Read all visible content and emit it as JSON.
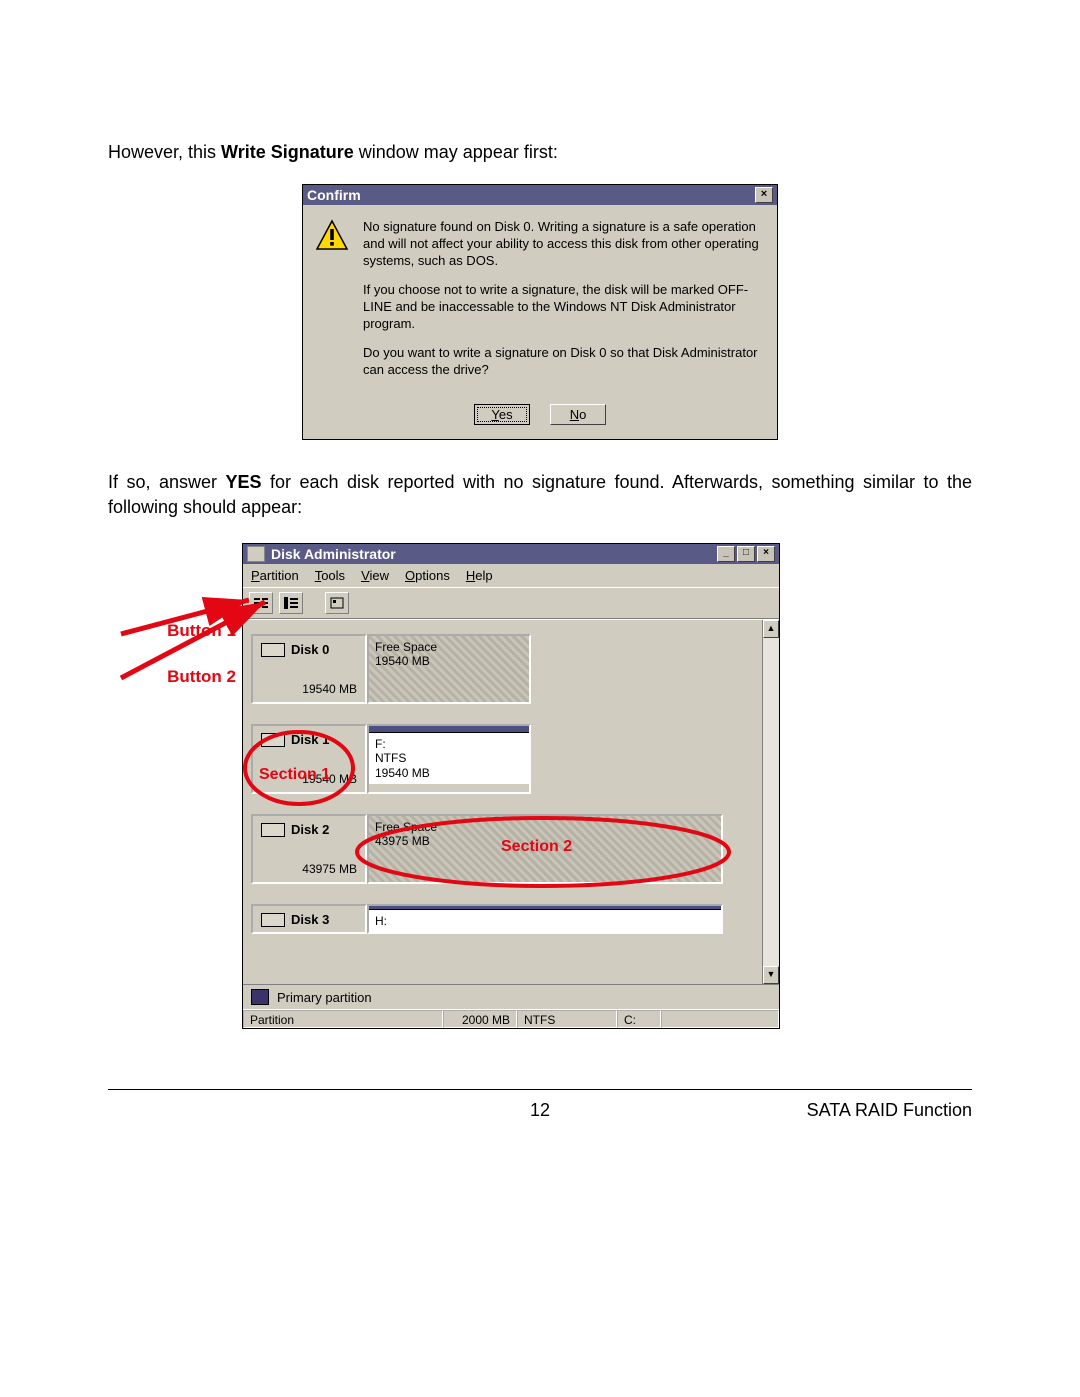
{
  "intro": {
    "pre": "However, this ",
    "bold": "Write Signature",
    "post": " window may appear first:"
  },
  "confirm": {
    "title": "Confirm",
    "para1": "No signature found on Disk 0.  Writing a signature is a safe operation and will not affect your ability to access this disk from other operating systems, such as DOS.",
    "para2": "If you choose not to write a signature, the disk will be marked OFF-LINE and be inaccessable to the Windows NT Disk Administrator program.",
    "para3": "Do you want to write a signature on Disk 0 so that Disk Administrator can access the drive?",
    "yes": "Yes",
    "no": "No",
    "icon_colors": {
      "fill": "#ffd800",
      "stroke": "#000000"
    }
  },
  "mid": {
    "pre": "If so, answer ",
    "bold": "YES",
    "post": " for each disk reported with no signature found. Afterwards, something similar to the following should appear:"
  },
  "callouts": {
    "button1": "Button 1",
    "button2": "Button 2",
    "section1": "Section 1",
    "section2": "Section 2",
    "color": "#e30613"
  },
  "disk_admin": {
    "window_title": "Disk Administrator",
    "menus": [
      "Partition",
      "Tools",
      "View",
      "Options",
      "Help"
    ],
    "disks": [
      {
        "name": "Disk 0",
        "size": "19540 MB",
        "vol_kind": "freespace",
        "vol_letter": "",
        "vol_fs": "Free Space",
        "vol_size": "19540 MB",
        "vol_width": 164
      },
      {
        "name": "Disk 1",
        "size": "19540 MB",
        "vol_kind": "ntfs",
        "vol_letter": "F:",
        "vol_fs": "NTFS",
        "vol_size": "19540 MB",
        "vol_width": 164
      },
      {
        "name": "Disk 2",
        "size": "43975 MB",
        "vol_kind": "freespace",
        "vol_letter": "",
        "vol_fs": "Free Space",
        "vol_size": "43975 MB",
        "vol_width": 356
      },
      {
        "name": "Disk 3",
        "size": "",
        "vol_kind": "ntfs",
        "vol_letter": "H:",
        "vol_fs": "",
        "vol_size": "",
        "vol_width": 356
      }
    ],
    "legend": "Primary partition",
    "status": {
      "label": "Partition",
      "size": "2000 MB",
      "fs": "NTFS",
      "drive": "C:"
    },
    "colors": {
      "titlebar_bg": "#5a5a87",
      "window_bg": "#d0ccc0",
      "stripe": "#4e4e80",
      "legend_swatch": "#3a3268"
    }
  },
  "footer": {
    "page": "12",
    "right": "SATA RAID Function"
  }
}
